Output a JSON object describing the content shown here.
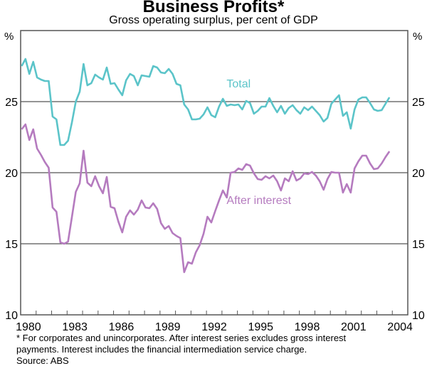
{
  "chart_data": {
    "type": "line",
    "title": "Business Profits*",
    "subtitle": "Gross operating surplus, per cent of GDP",
    "ylabel_left": "%",
    "ylabel_right": "%",
    "xlabel": "",
    "x_start": 1980.0,
    "x_step": 0.25,
    "xlim": [
      1980,
      2005
    ],
    "ylim": [
      10,
      30
    ],
    "yticks": [
      10,
      15,
      20,
      25
    ],
    "gridlines": [
      15,
      20,
      25
    ],
    "xtick_labels": [
      "1980",
      "1983",
      "1986",
      "1989",
      "1992",
      "1995",
      "1998",
      "2001",
      "2004"
    ],
    "xtick_years": [
      1980,
      1983,
      1986,
      1989,
      1992,
      1995,
      1998,
      2001,
      2004
    ],
    "series": [
      {
        "name": "Total",
        "color": "#5bc4c9",
        "label_at": [
          1993.3,
          26.0
        ],
        "values": [
          27.5,
          28.0,
          26.95,
          27.8,
          26.7,
          26.55,
          26.45,
          26.45,
          23.95,
          23.75,
          21.95,
          21.95,
          22.25,
          23.55,
          25.0,
          25.7,
          27.65,
          26.15,
          26.3,
          26.9,
          26.7,
          26.55,
          27.4,
          26.25,
          26.3,
          25.85,
          25.45,
          26.5,
          26.95,
          26.8,
          26.15,
          26.85,
          26.8,
          26.75,
          27.5,
          27.4,
          27.05,
          27.0,
          27.3,
          26.95,
          26.25,
          26.15,
          24.8,
          24.45,
          23.75,
          23.75,
          23.8,
          24.1,
          24.6,
          24.05,
          23.9,
          24.65,
          25.2,
          24.7,
          24.8,
          24.75,
          24.8,
          24.45,
          25.05,
          24.9,
          24.15,
          24.35,
          24.65,
          24.65,
          25.25,
          24.7,
          24.25,
          24.7,
          24.15,
          24.55,
          24.75,
          24.4,
          24.15,
          24.6,
          24.4,
          24.65,
          24.35,
          24.05,
          23.6,
          23.85,
          24.85,
          25.15,
          25.45,
          24.0,
          24.25,
          23.1,
          24.45,
          25.15,
          25.3,
          25.3,
          24.9,
          24.45,
          24.35,
          24.4,
          24.85,
          25.3
        ]
      },
      {
        "name": "After interest",
        "color": "#b57bbf",
        "label_at": [
          1993.3,
          17.8
        ],
        "values": [
          23.05,
          23.4,
          22.3,
          23.05,
          21.7,
          21.25,
          20.75,
          20.35,
          17.55,
          17.25,
          15.1,
          15.0,
          15.15,
          16.9,
          18.65,
          19.25,
          21.55,
          19.3,
          19.05,
          19.75,
          19.05,
          18.55,
          19.7,
          17.6,
          17.5,
          16.55,
          15.8,
          16.9,
          17.35,
          17.05,
          17.4,
          18.05,
          17.55,
          17.5,
          17.85,
          17.45,
          16.45,
          16.05,
          16.25,
          15.75,
          15.55,
          15.4,
          13.0,
          13.7,
          13.6,
          14.4,
          14.9,
          15.7,
          16.9,
          16.5,
          17.3,
          18.05,
          18.75,
          18.25,
          20.0,
          20.05,
          20.3,
          20.2,
          20.6,
          20.5,
          19.95,
          19.55,
          19.5,
          19.75,
          19.6,
          19.8,
          19.4,
          18.75,
          19.6,
          19.4,
          20.1,
          19.45,
          19.6,
          19.95,
          19.9,
          20.05,
          19.8,
          19.4,
          18.8,
          19.55,
          20.05,
          20.0,
          20.0,
          18.6,
          19.2,
          18.6,
          20.3,
          20.8,
          21.2,
          21.2,
          20.65,
          20.25,
          20.3,
          20.65,
          21.1,
          21.5
        ]
      }
    ]
  },
  "footnotes": [
    "* For corporates and unincorporates. After interest series excludes gross interest",
    "payments. Interest includes the financial intermediation service charge.",
    "Source: ABS"
  ]
}
